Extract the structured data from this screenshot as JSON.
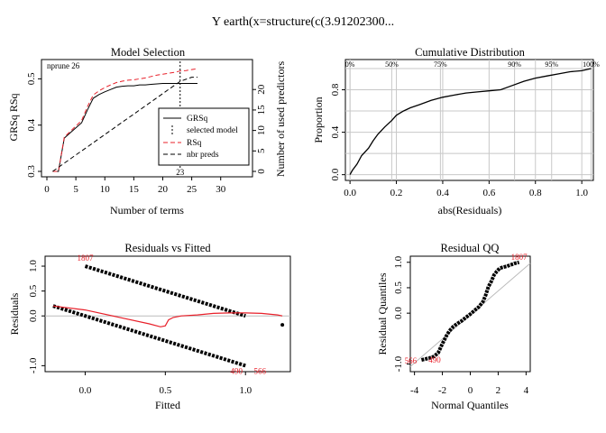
{
  "title": "Y     earth(x=structure(c(3.91202300...",
  "colors": {
    "red": "#e8202a",
    "black": "#000000",
    "grid": "#c8c8c8",
    "refline": "#bbbbbb"
  },
  "chart_data": [
    {
      "id": "model-selection",
      "type": "line",
      "title": "Model Selection",
      "xlabel": "Number of terms",
      "ylabel": "GRSq   RSq",
      "y2label": "Number of used predictors",
      "xlim": [
        0,
        33
      ],
      "ylim": [
        0.3,
        0.53
      ],
      "y2lim": [
        0,
        26
      ],
      "xticks": [
        "0",
        "5",
        "10",
        "15",
        "20",
        "25",
        "30"
      ],
      "yticks": [
        "0.3",
        "0.4",
        "0.5"
      ],
      "y2ticks": [
        "0",
        "5",
        "10",
        "15",
        "20"
      ],
      "nprune_label": "nprune 26",
      "selected_label": "23",
      "selected_x": 23,
      "legend": {
        "position": "right",
        "entries": [
          "GRSq",
          "selected model",
          "RSq",
          "nbr preds"
        ]
      },
      "series": [
        {
          "name": "GRSq",
          "style": "solid",
          "color": "black",
          "x": [
            1,
            2,
            3,
            4,
            5,
            6,
            7,
            8,
            9,
            10,
            11,
            12,
            13,
            14,
            15,
            16,
            17,
            18,
            19,
            20,
            21,
            22,
            23,
            24,
            25,
            26
          ],
          "y": [
            0.3,
            0.3,
            0.372,
            0.383,
            0.394,
            0.405,
            0.433,
            0.458,
            0.466,
            0.472,
            0.477,
            0.482,
            0.484,
            0.485,
            0.485,
            0.487,
            0.487,
            0.488,
            0.489,
            0.49,
            0.49,
            0.49,
            0.49,
            0.49,
            0.49,
            0.49
          ]
        },
        {
          "name": "RSq",
          "style": "dashed",
          "color": "red",
          "x": [
            1,
            2,
            3,
            4,
            5,
            6,
            7,
            8,
            9,
            10,
            11,
            12,
            13,
            14,
            15,
            16,
            17,
            18,
            19,
            20,
            21,
            22,
            23,
            24,
            25,
            26
          ],
          "y": [
            0.3,
            0.3,
            0.374,
            0.386,
            0.398,
            0.41,
            0.44,
            0.465,
            0.474,
            0.481,
            0.487,
            0.492,
            0.495,
            0.497,
            0.498,
            0.5,
            0.502,
            0.505,
            0.508,
            0.51,
            0.512,
            0.514,
            0.517,
            0.518,
            0.52,
            0.522
          ]
        },
        {
          "name": "nbr preds",
          "style": "dashed",
          "color": "black",
          "axis": "right",
          "x": [
            1,
            3,
            5,
            7,
            9,
            11,
            13,
            15,
            17,
            19,
            21,
            23,
            25,
            26
          ],
          "y": [
            0,
            2,
            4,
            6,
            8,
            10,
            12,
            14,
            16,
            18,
            20,
            22,
            23,
            23
          ]
        }
      ]
    },
    {
      "id": "cumulative-distribution",
      "type": "line",
      "title": "Cumulative Distribution",
      "xlabel": "abs(Residuals)",
      "ylabel": "Proportion",
      "xlim": [
        -0.02,
        1.05
      ],
      "ylim": [
        -0.02,
        1.0
      ],
      "xticks": [
        "0.0",
        "0.2",
        "0.4",
        "0.6",
        "0.8",
        "1.0"
      ],
      "yticks": [
        "0.0",
        "0.4",
        "0.8"
      ],
      "quantile_labels": [
        "0%",
        "50%",
        "75%",
        "90%",
        "95%",
        "100%"
      ],
      "quantile_x": [
        0.0,
        0.18,
        0.39,
        0.71,
        0.87,
        1.04
      ],
      "series": [
        {
          "name": "",
          "x": [
            0,
            0.01,
            0.03,
            0.05,
            0.08,
            0.1,
            0.12,
            0.15,
            0.18,
            0.2,
            0.23,
            0.26,
            0.3,
            0.35,
            0.4,
            0.45,
            0.5,
            0.55,
            0.6,
            0.65,
            0.7,
            0.75,
            0.8,
            0.85,
            0.9,
            0.95,
            1.0,
            1.04
          ],
          "y": [
            0,
            0.04,
            0.1,
            0.18,
            0.25,
            0.32,
            0.38,
            0.45,
            0.51,
            0.56,
            0.6,
            0.63,
            0.66,
            0.7,
            0.73,
            0.75,
            0.77,
            0.78,
            0.79,
            0.8,
            0.84,
            0.88,
            0.91,
            0.93,
            0.95,
            0.97,
            0.98,
            1.0
          ]
        }
      ]
    },
    {
      "id": "residuals-vs-fitted",
      "type": "scatter",
      "title": "Residuals vs Fitted",
      "xlabel": "Fitted",
      "ylabel": "Residuals",
      "xlim": [
        -0.25,
        1.28
      ],
      "ylim": [
        -1.12,
        1.2
      ],
      "xticks": [
        "0.0",
        "0.5",
        "1.0"
      ],
      "yticks": [
        "-1.0",
        "0.0",
        "0.5",
        "1.0"
      ],
      "point_labels": [
        "1807",
        "490",
        "566"
      ],
      "upper_band": {
        "x": [
          0.0,
          1.0
        ],
        "y": [
          1.0,
          0.0
        ]
      },
      "lower_band": {
        "x": [
          -0.2,
          1.0
        ],
        "y": [
          0.2,
          -1.0
        ]
      },
      "extra_point": {
        "x": 1.23,
        "y": -0.18
      },
      "smooth": {
        "x": [
          -0.2,
          0.0,
          0.2,
          0.4,
          0.47,
          0.5,
          0.52,
          0.55,
          0.6,
          0.7,
          0.8,
          0.9,
          1.0,
          1.1,
          1.2,
          1.23
        ],
        "y": [
          0.2,
          0.12,
          -0.02,
          -0.16,
          -0.22,
          -0.2,
          -0.08,
          -0.03,
          0.0,
          0.02,
          0.05,
          0.06,
          0.06,
          0.05,
          0.02,
          0.0
        ]
      }
    },
    {
      "id": "residual-qq",
      "type": "scatter",
      "title": "Residual QQ",
      "xlabel": "Normal Quantiles",
      "ylabel": "Residual Quantiles",
      "xlim": [
        -4.3,
        4.3
      ],
      "ylim": [
        -1.15,
        1.12
      ],
      "xticks": [
        "-4",
        "-2",
        "0",
        "2",
        "4"
      ],
      "yticks": [
        "-1.0",
        "0.0",
        "0.5",
        "1.0"
      ],
      "point_labels": [
        "1807",
        "566",
        "490"
      ],
      "qq": {
        "x": [
          -3.5,
          -3.2,
          -2.9,
          -2.6,
          -2.3,
          -2.0,
          -1.7,
          -1.5,
          -1.2,
          -0.9,
          -0.6,
          -0.3,
          0.0,
          0.3,
          0.6,
          0.9,
          1.1,
          1.3,
          1.5,
          1.7,
          1.9,
          2.1,
          2.3,
          2.6,
          2.9,
          3.2,
          3.5
        ],
        "y": [
          -0.92,
          -0.9,
          -0.88,
          -0.85,
          -0.78,
          -0.6,
          -0.44,
          -0.35,
          -0.26,
          -0.2,
          -0.15,
          -0.08,
          -0.02,
          0.05,
          0.12,
          0.22,
          0.35,
          0.52,
          0.62,
          0.75,
          0.82,
          0.88,
          0.9,
          0.92,
          0.95,
          0.98,
          1.0
        ]
      }
    }
  ]
}
